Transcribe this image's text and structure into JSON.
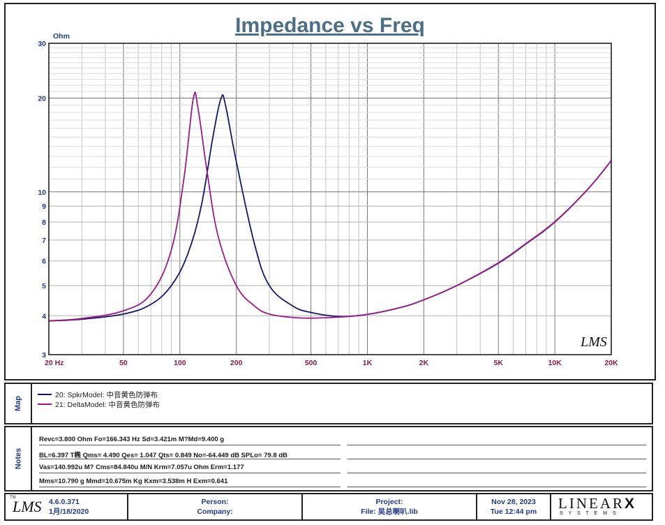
{
  "title": "Impedance vs Freq",
  "chart_data": {
    "type": "line",
    "ylabel": "Ohm",
    "xscale": "log",
    "yscale": "log",
    "xlim": [
      20,
      20000
    ],
    "ylim": [
      3,
      30
    ],
    "grid": true,
    "x_tick_labels": [
      {
        "v": 20,
        "t": "20  Hz"
      },
      {
        "v": 50,
        "t": "50"
      },
      {
        "v": 100,
        "t": "100"
      },
      {
        "v": 200,
        "t": "200"
      },
      {
        "v": 500,
        "t": "500"
      },
      {
        "v": 1000,
        "t": "1K"
      },
      {
        "v": 2000,
        "t": "2K"
      },
      {
        "v": 5000,
        "t": "5K"
      },
      {
        "v": 10000,
        "t": "10K"
      },
      {
        "v": 20000,
        "t": "20K"
      }
    ],
    "y_tick_labels": [
      {
        "v": 3,
        "t": "3"
      },
      {
        "v": 4,
        "t": "4"
      },
      {
        "v": 5,
        "t": "5"
      },
      {
        "v": 6,
        "t": "6"
      },
      {
        "v": 7,
        "t": "7"
      },
      {
        "v": 8,
        "t": "8"
      },
      {
        "v": 9,
        "t": "9"
      },
      {
        "v": 10,
        "t": "10"
      },
      {
        "v": 20,
        "t": "20"
      },
      {
        "v": 30,
        "t": "30"
      }
    ],
    "series": [
      {
        "name": "20: SpkrModel: 中音黄色防弹布",
        "color": "#15156e",
        "points": [
          [
            20,
            3.85
          ],
          [
            30,
            3.9
          ],
          [
            50,
            4.05
          ],
          [
            70,
            4.35
          ],
          [
            90,
            5.0
          ],
          [
            110,
            6.3
          ],
          [
            130,
            9.0
          ],
          [
            150,
            15.0
          ],
          [
            166,
            20.0
          ],
          [
            175,
            19.0
          ],
          [
            200,
            12.5
          ],
          [
            250,
            6.8
          ],
          [
            300,
            5.0
          ],
          [
            400,
            4.3
          ],
          [
            500,
            4.1
          ],
          [
            700,
            3.98
          ],
          [
            1000,
            4.04
          ],
          [
            1500,
            4.25
          ],
          [
            2000,
            4.5
          ],
          [
            3000,
            5.0
          ],
          [
            5000,
            5.9
          ],
          [
            7000,
            6.8
          ],
          [
            10000,
            8.0
          ],
          [
            15000,
            10.2
          ],
          [
            20000,
            12.6
          ]
        ]
      },
      {
        "name": "21: DeltaModel: 中音黄色防弹布",
        "color": "#9b1a8a",
        "points": [
          [
            20,
            3.85
          ],
          [
            30,
            3.92
          ],
          [
            50,
            4.15
          ],
          [
            70,
            4.7
          ],
          [
            90,
            6.5
          ],
          [
            105,
            11.0
          ],
          [
            118,
            20.0
          ],
          [
            125,
            18.5
          ],
          [
            140,
            11.5
          ],
          [
            160,
            7.2
          ],
          [
            200,
            5.0
          ],
          [
            250,
            4.3
          ],
          [
            300,
            4.05
          ],
          [
            400,
            3.95
          ],
          [
            500,
            3.93
          ],
          [
            700,
            3.96
          ],
          [
            1000,
            4.04
          ],
          [
            1500,
            4.25
          ],
          [
            2000,
            4.5
          ],
          [
            3000,
            5.0
          ],
          [
            5000,
            5.92
          ],
          [
            7000,
            6.82
          ],
          [
            10000,
            8.02
          ],
          [
            15000,
            10.2
          ],
          [
            20000,
            12.6
          ]
        ]
      }
    ]
  },
  "watermark": "LMS",
  "map": {
    "label": "Map",
    "entries": [
      "20: SpkrModel: 中音黄色防弹布",
      "21: DeltaModel: 中音黄色防弹布"
    ]
  },
  "notes": {
    "label": "Notes",
    "lines": [
      "Revc=3.800 Ohm  Fo=166.343 Hz  Sd=3.421m M?Md=9.400 g",
      "BL=6.397 T椭  Qms= 4.490  Qes= 1.047  Qts= 0.849  No=-64.449 dB  SPLo= 79.8 dB",
      "Vas=140.992u M? Cms=84.840u M/N  Krm=7.057u Ohm  Erm=1.177",
      "Mms=10.790 g  Mmd=10.675m Kg  Kxm=3.538m H  Exm=0.641"
    ]
  },
  "footer": {
    "logo": "LMS",
    "tm": "TM",
    "version": "4.6.0.371",
    "build_date": "1月/18/2020",
    "person_label": "Person:",
    "company_label": "Company:",
    "project_label": "Project:",
    "file_label": "File: 吴总喇叭.lib",
    "date": "Nov 28, 2023",
    "time": "Tue 12:44 pm",
    "brand": "LINEAR",
    "brand_x": "X",
    "brand_sub": "S Y S T E M S"
  }
}
